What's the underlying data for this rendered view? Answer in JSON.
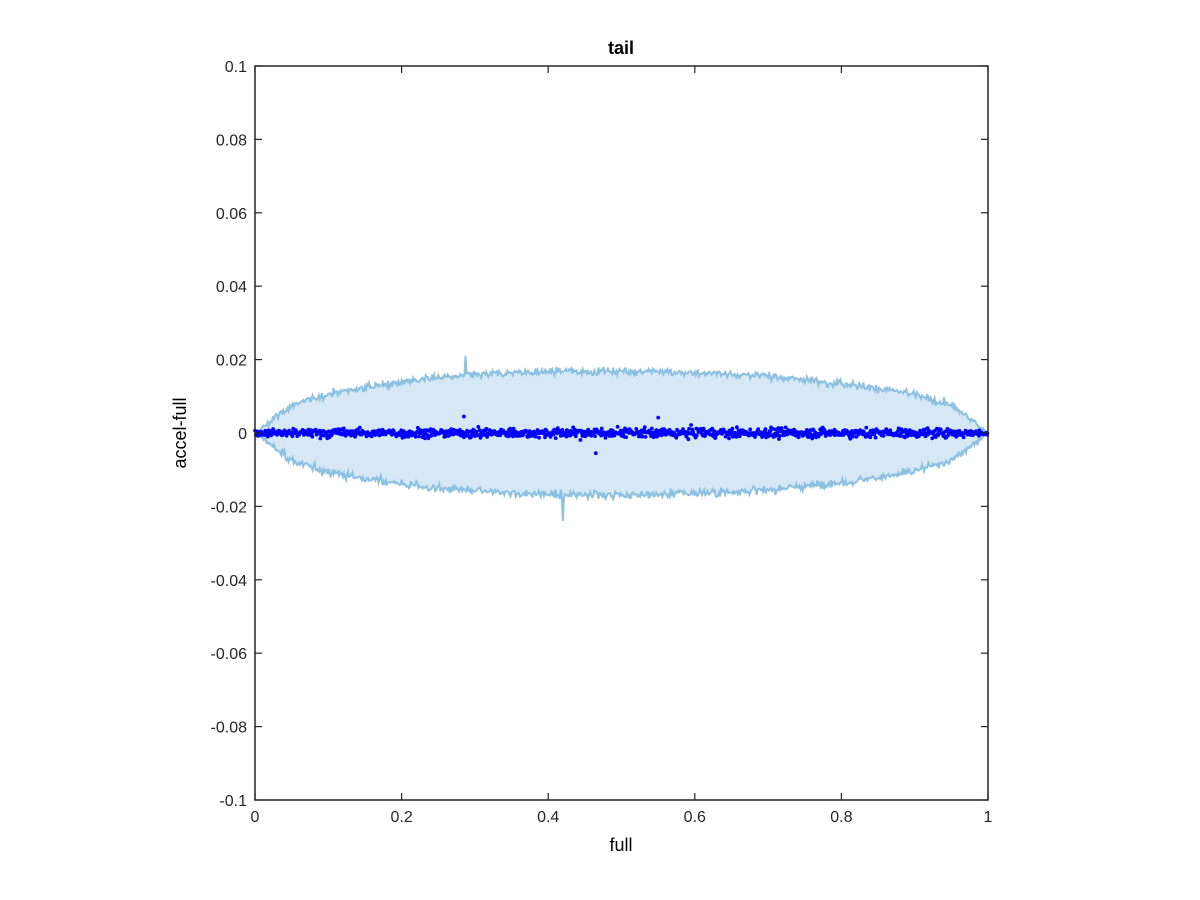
{
  "chart_data": {
    "type": "scatter",
    "title": "tail",
    "xlabel": "full",
    "ylabel": "accel-full",
    "xlim": [
      0,
      1
    ],
    "ylim": [
      -0.1,
      0.1
    ],
    "x_ticks": [
      "0",
      "0.2",
      "0.4",
      "0.6",
      "0.8",
      "1"
    ],
    "y_ticks": [
      "0.1",
      "0.08",
      "0.06",
      "0.04",
      "0.02",
      "0",
      "-0.02",
      "-0.04",
      "-0.06",
      "-0.08",
      "-0.1"
    ],
    "grid": false,
    "legend": "none",
    "band": {
      "name": "",
      "description": "noisy symmetric envelope, approx. +/- 0.036*sqrt(x*(1-x)) with jitter",
      "x": [
        0,
        0.05,
        0.1,
        0.15,
        0.2,
        0.25,
        0.3,
        0.35,
        0.4,
        0.45,
        0.5,
        0.55,
        0.6,
        0.65,
        0.7,
        0.75,
        0.8,
        0.85,
        0.9,
        0.95,
        1
      ],
      "upper": [
        0.0,
        0.0075,
        0.0105,
        0.0125,
        0.0138,
        0.0152,
        0.0158,
        0.0163,
        0.0166,
        0.0168,
        0.0168,
        0.0166,
        0.0164,
        0.016,
        0.0154,
        0.0145,
        0.0136,
        0.0122,
        0.0105,
        0.0076,
        0.0
      ],
      "lower": [
        0.0,
        -0.0075,
        -0.0105,
        -0.0125,
        -0.0138,
        -0.0152,
        -0.0158,
        -0.0163,
        -0.0166,
        -0.0168,
        -0.0168,
        -0.0166,
        -0.0164,
        -0.016,
        -0.0154,
        -0.0145,
        -0.0136,
        -0.0122,
        -0.0105,
        -0.0076,
        0.0
      ],
      "spikes": [
        [
          0.287,
          0.021
        ],
        [
          0.42,
          -0.024
        ]
      ]
    },
    "scatter": {
      "name": "",
      "description": "dense points clustered near zero, spread approx. +/- 0.003",
      "x_range": [
        0,
        1
      ],
      "y_center": 0,
      "y_spread": 0.003,
      "outliers": [
        [
          0.285,
          0.0045
        ],
        [
          0.465,
          -0.0055
        ],
        [
          0.55,
          0.0042
        ]
      ]
    },
    "colors": {
      "band_fill": "#d6e7f5",
      "band_line": "#8cc1e1",
      "points": "#0000ff",
      "axes": "#262626"
    }
  }
}
